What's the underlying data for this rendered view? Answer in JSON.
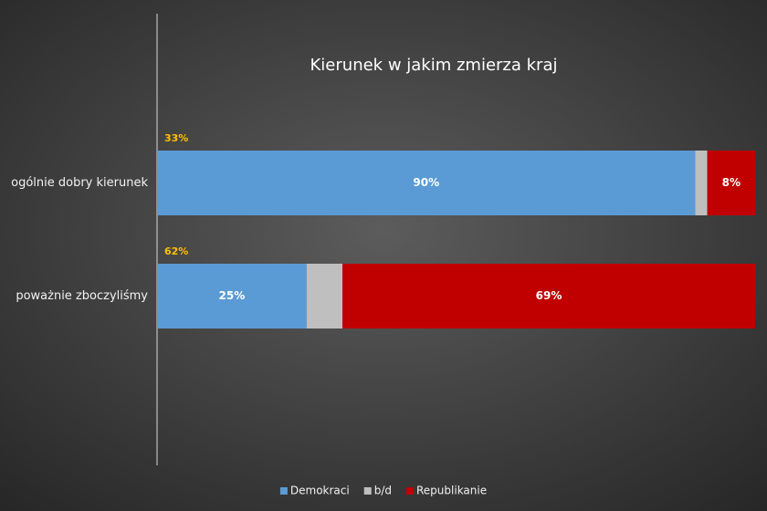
{
  "chart_data": {
    "type": "stacked-bar-horizontal",
    "title": "Kierunek w jakim zmierza kraj",
    "categories": [
      "ogólnie dobry kierunek",
      "poważnie zboczyliśmy"
    ],
    "annotations": [
      {
        "value": 33,
        "label": "33%"
      },
      {
        "value": 62,
        "label": "62%"
      }
    ],
    "series": [
      {
        "name": "Demokraci",
        "color": "#5b9bd5",
        "values": [
          90,
          25
        ],
        "value_labels": [
          "90%",
          "25%"
        ]
      },
      {
        "name": "b/d",
        "color": "#bfbfbf",
        "values": [
          2,
          6
        ]
      },
      {
        "name": "Republikanie",
        "color": "#c00000",
        "values": [
          8,
          69
        ],
        "value_labels": [
          "8%",
          "69%"
        ]
      }
    ],
    "xlim": [
      0,
      100
    ],
    "legend": "bottom"
  }
}
